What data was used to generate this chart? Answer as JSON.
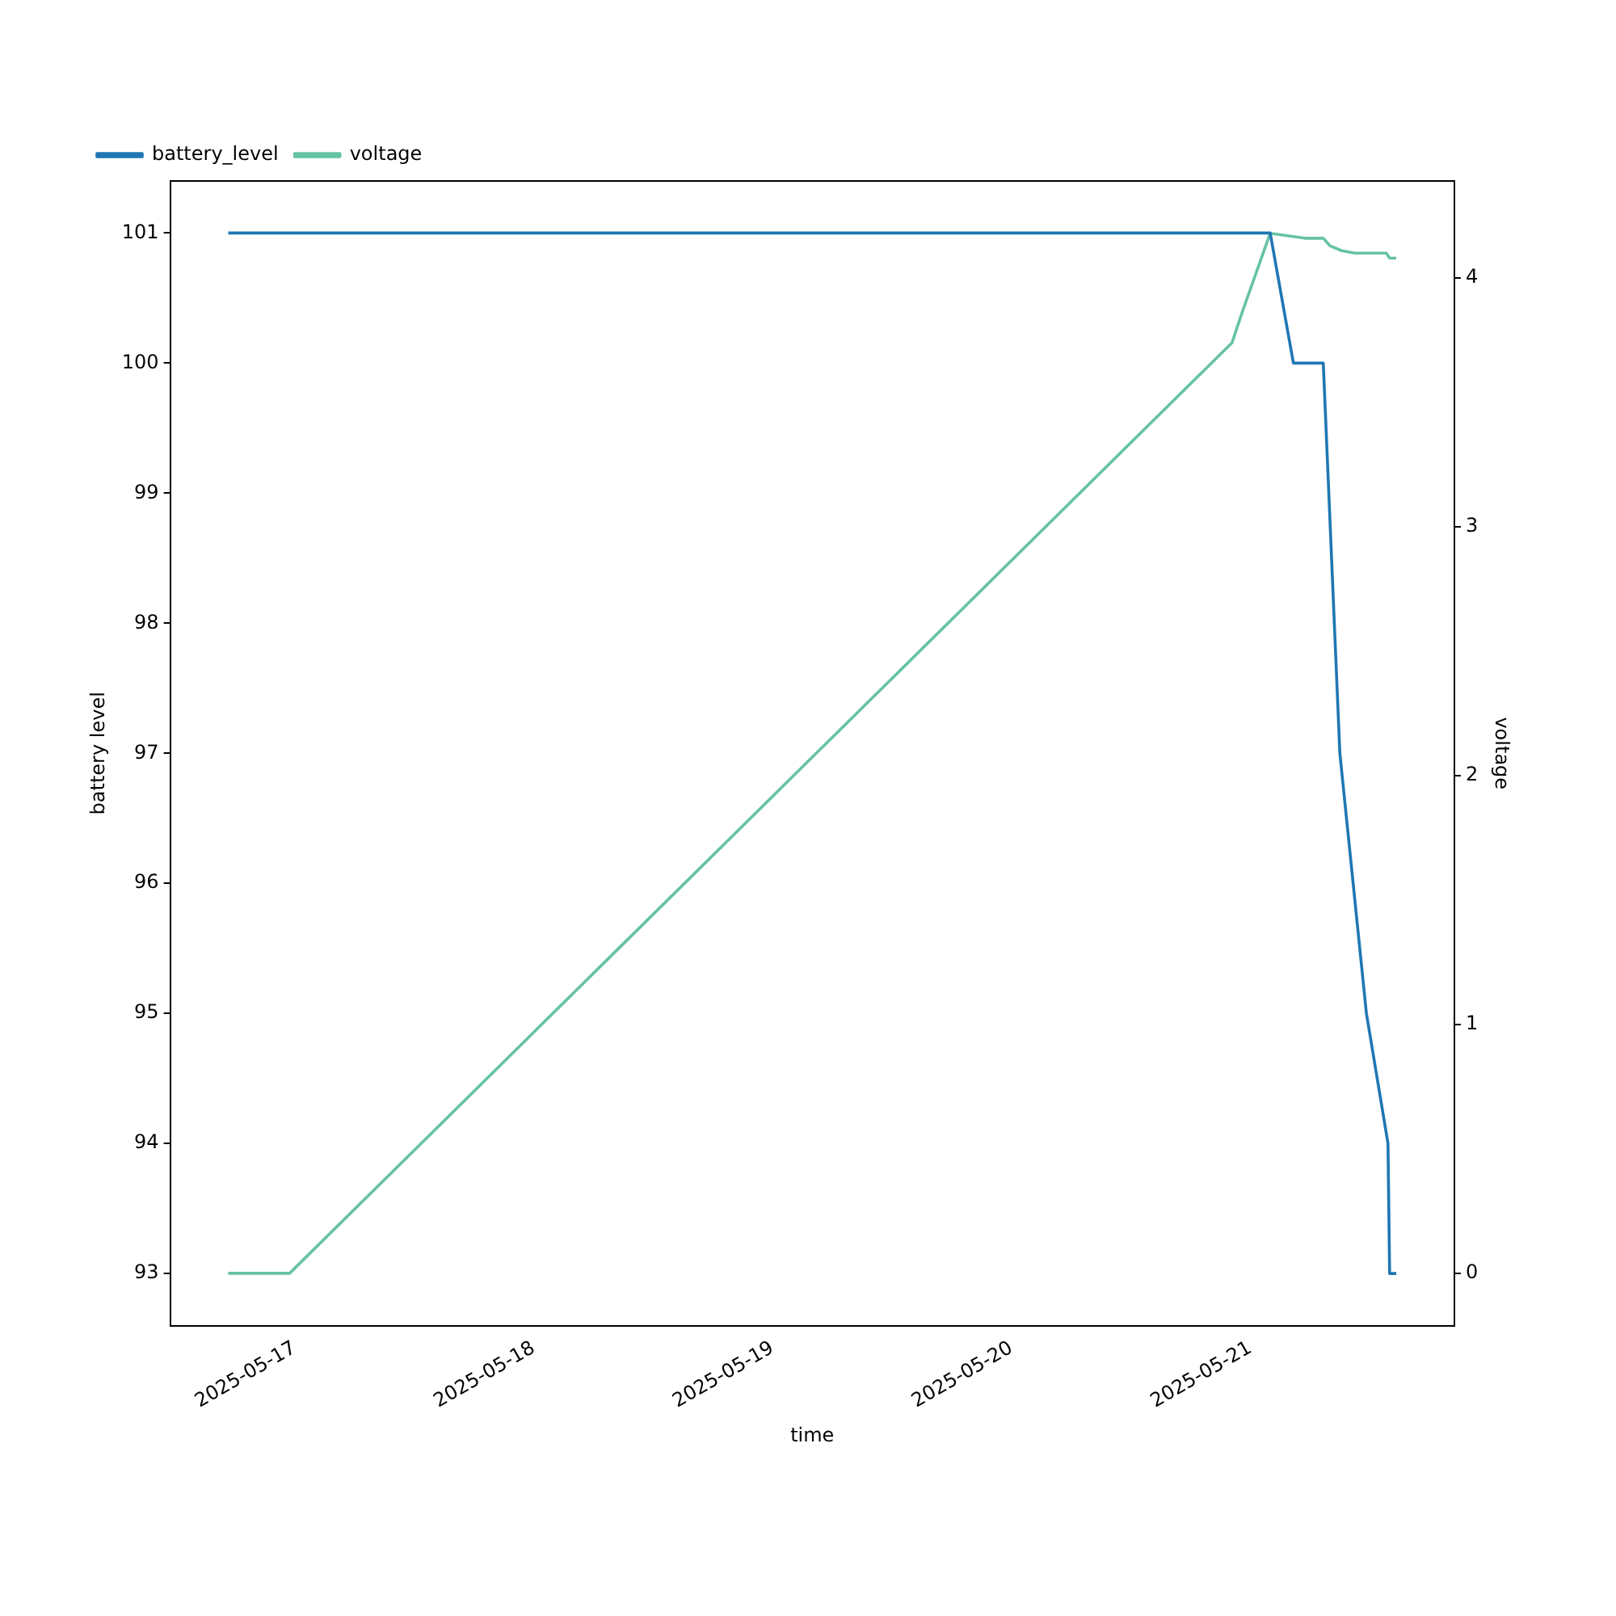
{
  "chart_data": {
    "type": "line",
    "xlabel": "time",
    "ylabel": "battery level",
    "y2label": "voltage",
    "xlim": [
      "2025-05-16T11:30",
      "2025-05-21T20:30"
    ],
    "xticks": [
      "2025-05-17",
      "2025-05-18",
      "2025-05-19",
      "2025-05-20",
      "2025-05-21"
    ],
    "ylim": [
      92.6,
      101.4
    ],
    "yticks": [
      93,
      94,
      95,
      96,
      97,
      98,
      99,
      100,
      101
    ],
    "y2lim": [
      -0.21,
      4.39
    ],
    "y2ticks": [
      0,
      1,
      2,
      3,
      4
    ],
    "grid": false,
    "legend": "top left",
    "marker": "none",
    "line_style": "solid",
    "series": [
      {
        "name": "battery_level",
        "color": "#1f77b4",
        "x": [
          "2025-05-16T17:20",
          "2025-05-21T02:00",
          "2025-05-21T04:20",
          "2025-05-21T07:20",
          "2025-05-21T09:00",
          "2025-05-21T10:20",
          "2025-05-21T11:40",
          "2025-05-21T13:50",
          "2025-05-21T14:00",
          "2025-05-21T14:40"
        ],
        "values": [
          101,
          101,
          100,
          100,
          97,
          96,
          95,
          94,
          93,
          93
        ]
      },
      {
        "name": "voltage",
        "color": "#66c2a5",
        "axis": "y2",
        "x": [
          "2025-05-16T17:20",
          "2025-05-16T23:30",
          "2025-05-20T22:10",
          "2025-05-20T23:10",
          "2025-05-21T02:00",
          "2025-05-21T05:30",
          "2025-05-21T07:20",
          "2025-05-21T08:00",
          "2025-05-21T09:10",
          "2025-05-21T10:30",
          "2025-05-21T13:40",
          "2025-05-21T14:00",
          "2025-05-21T14:40"
        ],
        "values": [
          0,
          0,
          3.74,
          3.86,
          4.18,
          4.16,
          4.16,
          4.13,
          4.11,
          4.1,
          4.1,
          4.08,
          4.08
        ]
      }
    ]
  }
}
